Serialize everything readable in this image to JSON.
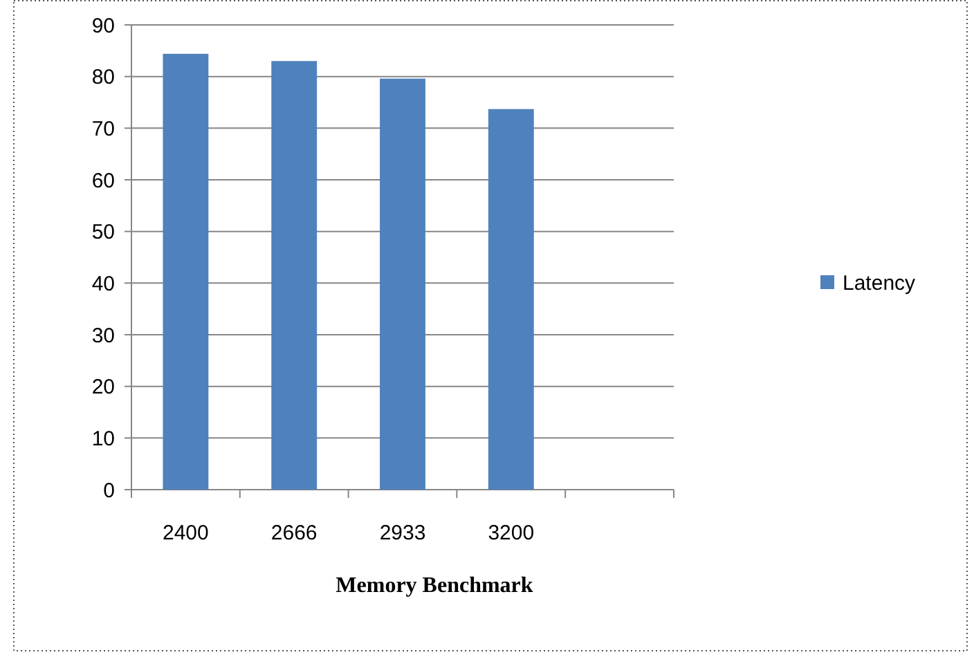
{
  "chart_data": {
    "type": "bar",
    "title": "Memory Benchmark",
    "categories": [
      "2400",
      "2666",
      "2933",
      "3200",
      null
    ],
    "series": [
      {
        "name": "Latency",
        "color": "#4f81bd",
        "values": [
          84.4,
          83.0,
          79.6,
          73.7,
          null
        ]
      }
    ],
    "ylim": [
      0,
      90
    ],
    "yticks": [
      0,
      10,
      20,
      30,
      40,
      50,
      60,
      70,
      80,
      90
    ],
    "grid": "y",
    "legend": "right"
  }
}
